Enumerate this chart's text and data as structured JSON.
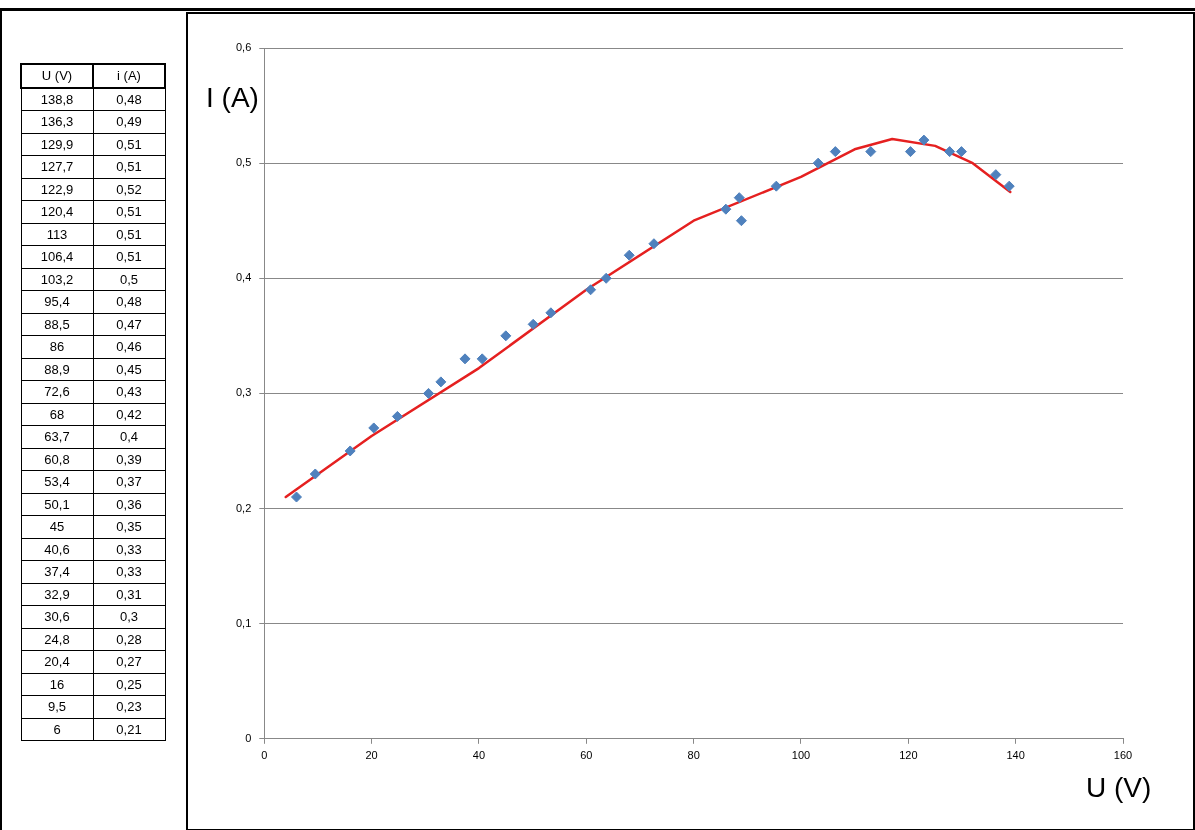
{
  "chart_data": [
    {
      "type": "other",
      "xlabel": "U (V)",
      "ylabel": "i (A)",
      "categories": [
        "138,8",
        "136,3",
        "129,9",
        "127,7",
        "122,9",
        "120,4",
        "113",
        "106,4",
        "103,2",
        "95,4",
        "88,5",
        "86",
        "88,9",
        "72,6",
        "68",
        "63,7",
        "60,8",
        "53,4",
        "50,1",
        "45",
        "40,6",
        "37,4",
        "32,9",
        "30,6",
        "24,8",
        "20,4",
        "16",
        "9,5",
        "6"
      ],
      "value_labels": [
        "0,48",
        "0,49",
        "0,51",
        "0,51",
        "0,52",
        "0,51",
        "0,51",
        "0,51",
        "0,5",
        "0,48",
        "0,47",
        "0,46",
        "0,45",
        "0,43",
        "0,42",
        "0,4",
        "0,39",
        "0,37",
        "0,36",
        "0,35",
        "0,33",
        "0,33",
        "0,31",
        "0,3",
        "0,28",
        "0,27",
        "0,25",
        "0,23",
        "0,21"
      ]
    },
    {
      "type": "scatter",
      "xlabel": "U (V)",
      "ylabel": "I (A)",
      "xlim": [
        0,
        160
      ],
      "xticks": [
        0,
        20,
        40,
        60,
        80,
        100,
        120,
        140,
        160
      ],
      "ylim": [
        0,
        0.6
      ],
      "yticks": [
        {
          "value": 0,
          "label": "0"
        },
        {
          "value": 0.1,
          "label": "0,1"
        },
        {
          "value": 0.2,
          "label": "0,2"
        },
        {
          "value": 0.3,
          "label": "0,3"
        },
        {
          "value": 0.4,
          "label": "0,4"
        },
        {
          "value": 0.5,
          "label": "0,5"
        },
        {
          "value": 0.6,
          "label": "0,6"
        }
      ],
      "grid": "y",
      "legend": false,
      "series": [
        {
          "type": "scatter",
          "marker": "diamond",
          "color": "#4f81bd",
          "x": [
            138.8,
            136.3,
            129.9,
            127.7,
            122.9,
            120.4,
            113,
            106.4,
            103.2,
            95.4,
            88.5,
            86,
            88.9,
            72.6,
            68,
            63.7,
            60.8,
            53.4,
            50.1,
            45,
            40.6,
            37.4,
            32.9,
            30.6,
            24.8,
            20.4,
            16,
            9.5,
            6
          ],
          "values": [
            0.48,
            0.49,
            0.51,
            0.51,
            0.52,
            0.51,
            0.51,
            0.51,
            0.5,
            0.48,
            0.47,
            0.46,
            0.45,
            0.43,
            0.42,
            0.4,
            0.39,
            0.37,
            0.36,
            0.35,
            0.33,
            0.33,
            0.31,
            0.3,
            0.28,
            0.27,
            0.25,
            0.23,
            0.21
          ]
        },
        {
          "type": "line",
          "marker": "none",
          "color": "#e52020",
          "line_style": "solid",
          "x": [
            4,
            20,
            40,
            60,
            80,
            100,
            110,
            117,
            125,
            132,
            139
          ],
          "values": [
            0.21,
            0.263,
            0.322,
            0.39,
            0.45,
            0.488,
            0.512,
            0.521,
            0.515,
            0.5,
            0.475
          ]
        }
      ]
    }
  ]
}
